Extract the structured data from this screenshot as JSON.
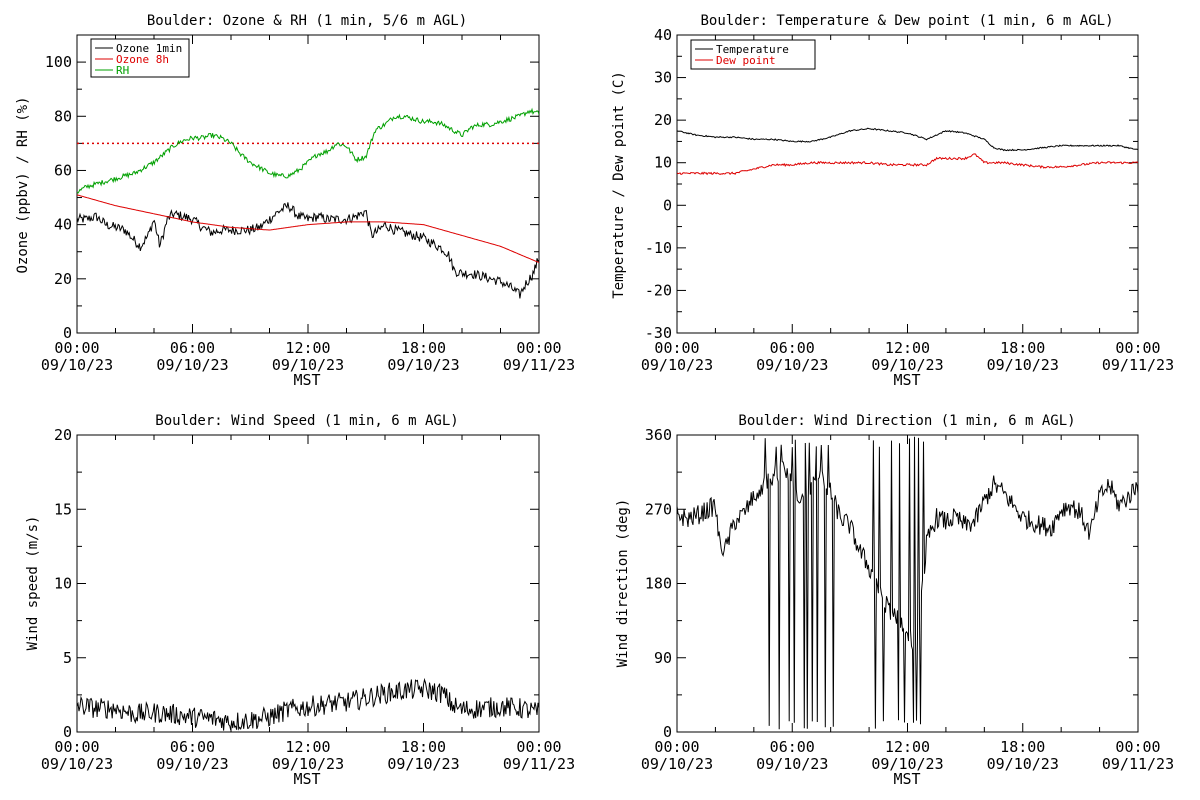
{
  "chart_data": [
    {
      "type": "line",
      "title": "Boulder: Ozone & RH (1 min, 5/6 m AGL)",
      "ylabel": "Ozone (ppbv) / RH (%)",
      "xlabel": "MST",
      "xlim_hours": [
        0,
        24
      ],
      "ylim": [
        0,
        110
      ],
      "yticks": [
        0,
        20,
        40,
        60,
        80,
        100
      ],
      "xticks": [
        {
          "hours": 0,
          "time": "00:00",
          "date": "09/10/23"
        },
        {
          "hours": 6,
          "time": "06:00",
          "date": "09/10/23"
        },
        {
          "hours": 12,
          "time": "12:00",
          "date": "09/10/23"
        },
        {
          "hours": 18,
          "time": "18:00",
          "date": "09/10/23"
        },
        {
          "hours": 24,
          "time": "00:00",
          "date": "09/11/23"
        }
      ],
      "reference_line": {
        "y": 70,
        "color": "#dd0000",
        "style": "dotted"
      },
      "legend_position": "top-left",
      "series": [
        {
          "name": "Ozone 1min",
          "color": "#000000",
          "noise": 1.8,
          "x": [
            0,
            0.5,
            1,
            1.5,
            2,
            2.5,
            3,
            3.3,
            3.7,
            4,
            4.3,
            4.7,
            5,
            5.5,
            6,
            6.5,
            7,
            7.5,
            8,
            8.5,
            9,
            9.5,
            10,
            10.5,
            11,
            11.5,
            12,
            12.5,
            13,
            13.5,
            14,
            14.5,
            15,
            15.3,
            15.7,
            16,
            16.5,
            17,
            17.5,
            18,
            18.5,
            19,
            19.3,
            19.6,
            20,
            20.5,
            21,
            21.5,
            22,
            22.5,
            23,
            23.3,
            23.7,
            24
          ],
          "y": [
            42,
            42,
            43,
            40,
            39,
            38,
            34,
            32,
            36,
            42,
            32,
            42,
            44,
            43,
            42,
            39,
            37,
            38,
            38,
            38,
            38,
            39,
            42,
            45,
            47,
            43,
            42,
            43,
            42,
            42,
            42,
            43,
            45,
            36,
            38,
            40,
            38,
            37,
            36,
            35,
            33,
            31,
            29,
            23,
            22,
            22,
            21,
            20,
            19,
            17,
            14,
            18,
            22,
            28
          ]
        },
        {
          "name": "Ozone 8h",
          "color": "#dd0000",
          "noise": 0,
          "x": [
            0,
            2,
            4,
            6,
            8,
            10,
            11,
            12,
            14,
            16,
            18,
            19,
            20,
            21,
            22,
            23,
            24
          ],
          "y": [
            51,
            47,
            44,
            41,
            39,
            38,
            39,
            40,
            41,
            41,
            40,
            38,
            36,
            34,
            32,
            29,
            26
          ]
        },
        {
          "name": "RH",
          "color": "#00a000",
          "noise": 0.9,
          "x": [
            0,
            0.5,
            1,
            1.5,
            2,
            2.5,
            3,
            3.5,
            4,
            4.5,
            5,
            5.5,
            6,
            6.5,
            7,
            7.5,
            8,
            8.5,
            9,
            9.5,
            10,
            10.5,
            11,
            11.5,
            12,
            12.5,
            13,
            13.5,
            14,
            14.5,
            15,
            15.5,
            16,
            16.5,
            17,
            17.5,
            18,
            18.5,
            19,
            19.5,
            20,
            20.5,
            21,
            21.5,
            22,
            22.5,
            23,
            23.5,
            24
          ],
          "y": [
            52,
            54,
            55,
            56,
            57,
            58,
            59,
            61,
            63,
            66,
            69,
            71,
            72,
            72,
            73,
            72,
            70,
            66,
            63,
            61,
            59,
            58,
            58,
            60,
            63,
            66,
            67,
            70,
            69,
            64,
            65,
            75,
            77,
            80,
            80,
            79,
            78,
            78,
            77,
            75,
            73,
            76,
            77,
            77,
            78,
            79,
            80,
            82,
            81
          ]
        }
      ]
    },
    {
      "type": "line",
      "title": "Boulder: Temperature & Dew point (1 min, 6 m AGL)",
      "ylabel": "Temperature / Dew point (C)",
      "xlabel": "MST",
      "xlim_hours": [
        0,
        24
      ],
      "ylim": [
        -30,
        40
      ],
      "yticks": [
        -30,
        -20,
        -10,
        0,
        10,
        20,
        30,
        40
      ],
      "xticks": [
        {
          "hours": 0,
          "time": "00:00",
          "date": "09/10/23"
        },
        {
          "hours": 6,
          "time": "06:00",
          "date": "09/10/23"
        },
        {
          "hours": 12,
          "time": "12:00",
          "date": "09/10/23"
        },
        {
          "hours": 18,
          "time": "18:00",
          "date": "09/10/23"
        },
        {
          "hours": 24,
          "time": "00:00",
          "date": "09/11/23"
        }
      ],
      "legend_position": "top-left",
      "series": [
        {
          "name": "Temperature",
          "color": "#000000",
          "noise": 0.15,
          "x": [
            0,
            1,
            2,
            3,
            4,
            5,
            6,
            7,
            8,
            9,
            10,
            11,
            12,
            13,
            14,
            15,
            16,
            16.5,
            17,
            18,
            19,
            20,
            21,
            22,
            23,
            24
          ],
          "y": [
            17.5,
            16.5,
            16,
            16,
            15.5,
            15.5,
            15,
            15,
            16,
            17.5,
            18,
            17.5,
            17,
            15.5,
            17.5,
            17,
            15.5,
            13.5,
            13,
            13,
            13.5,
            14,
            14,
            14,
            14,
            13
          ]
        },
        {
          "name": "Dew point",
          "color": "#dd0000",
          "noise": 0.25,
          "x": [
            0,
            1,
            2,
            3,
            4,
            5,
            6,
            7,
            8,
            9,
            10,
            11,
            12,
            13,
            13.5,
            14,
            15,
            15.5,
            16,
            17,
            18,
            19,
            20,
            21,
            22,
            23,
            24
          ],
          "y": [
            7.5,
            7.5,
            7.5,
            7.5,
            8.5,
            9.5,
            9.5,
            10,
            10,
            10,
            10,
            9.5,
            9.5,
            9.5,
            11,
            11,
            11,
            12,
            10,
            10,
            9.5,
            9,
            9,
            9.5,
            10,
            10,
            10
          ]
        }
      ]
    },
    {
      "type": "line",
      "title": "Boulder: Wind Speed (1 min, 6 m AGL)",
      "ylabel": "Wind speed (m/s)",
      "xlabel": "MST",
      "xlim_hours": [
        0,
        24
      ],
      "ylim": [
        0,
        20
      ],
      "yticks": [
        0,
        5,
        10,
        15,
        20
      ],
      "xticks": [
        {
          "hours": 0,
          "time": "00:00",
          "date": "09/10/23"
        },
        {
          "hours": 6,
          "time": "06:00",
          "date": "09/10/23"
        },
        {
          "hours": 12,
          "time": "12:00",
          "date": "09/10/23"
        },
        {
          "hours": 18,
          "time": "18:00",
          "date": "09/10/23"
        },
        {
          "hours": 24,
          "time": "00:00",
          "date": "09/11/23"
        }
      ],
      "series": [
        {
          "color": "#000000",
          "noise": 0.7,
          "x": [
            0,
            1,
            2,
            3,
            4,
            5,
            6,
            7,
            8,
            9,
            10,
            11,
            12,
            13,
            14,
            15,
            16,
            17,
            18,
            19,
            19.5,
            20,
            21,
            22,
            23,
            24
          ],
          "y": [
            1.8,
            1.6,
            1.6,
            1.2,
            1.3,
            1.2,
            1.0,
            0.9,
            0.7,
            0.8,
            1.0,
            1.5,
            1.7,
            1.9,
            2.0,
            2.3,
            2.6,
            2.8,
            2.9,
            2.6,
            1.8,
            1.5,
            1.6,
            1.7,
            1.6,
            1.3
          ]
        }
      ]
    },
    {
      "type": "line",
      "title": "Boulder: Wind Direction (1 min, 6 m AGL)",
      "ylabel": "Wind direction (deg)",
      "xlabel": "MST",
      "xlim_hours": [
        0,
        24
      ],
      "ylim": [
        0,
        360
      ],
      "yticks": [
        0,
        90,
        180,
        270,
        360
      ],
      "xticks": [
        {
          "hours": 0,
          "time": "00:00",
          "date": "09/10/23"
        },
        {
          "hours": 6,
          "time": "06:00",
          "date": "09/10/23"
        },
        {
          "hours": 12,
          "time": "12:00",
          "date": "09/10/23"
        },
        {
          "hours": 18,
          "time": "18:00",
          "date": "09/10/23"
        },
        {
          "hours": 24,
          "time": "00:00",
          "date": "09/11/23"
        }
      ],
      "series": [
        {
          "color": "#000000",
          "noise": 12,
          "x": [
            0,
            0.5,
            1,
            1.5,
            2,
            2.2,
            2.5,
            3,
            3.5,
            4,
            4.5,
            5,
            5.5,
            6,
            6.5,
            7,
            7.5,
            8,
            8.5,
            9,
            9.5,
            10,
            10.5,
            11,
            11.5,
            12,
            12.5,
            13,
            13.5,
            14,
            14.5,
            15,
            15.5,
            16,
            16.5,
            17,
            17.5,
            18,
            18.5,
            19,
            19.5,
            20,
            20.5,
            21,
            21.5,
            22,
            22.5,
            23,
            23.5,
            24
          ],
          "y": [
            265,
            258,
            262,
            268,
            275,
            230,
            220,
            255,
            265,
            285,
            300,
            310,
            320,
            300,
            280,
            300,
            310,
            290,
            260,
            250,
            220,
            200,
            170,
            150,
            140,
            120,
            100,
            230,
            260,
            255,
            260,
            250,
            255,
            280,
            300,
            290,
            275,
            260,
            255,
            250,
            248,
            270,
            275,
            265,
            240,
            285,
            300,
            275,
            285,
            300
          ]
        }
      ],
      "extremes": {
        "windows_hours": [
          [
            4.1,
            8.2
          ],
          [
            10.2,
            13.1
          ]
        ],
        "min": 0,
        "max": 360
      }
    }
  ]
}
